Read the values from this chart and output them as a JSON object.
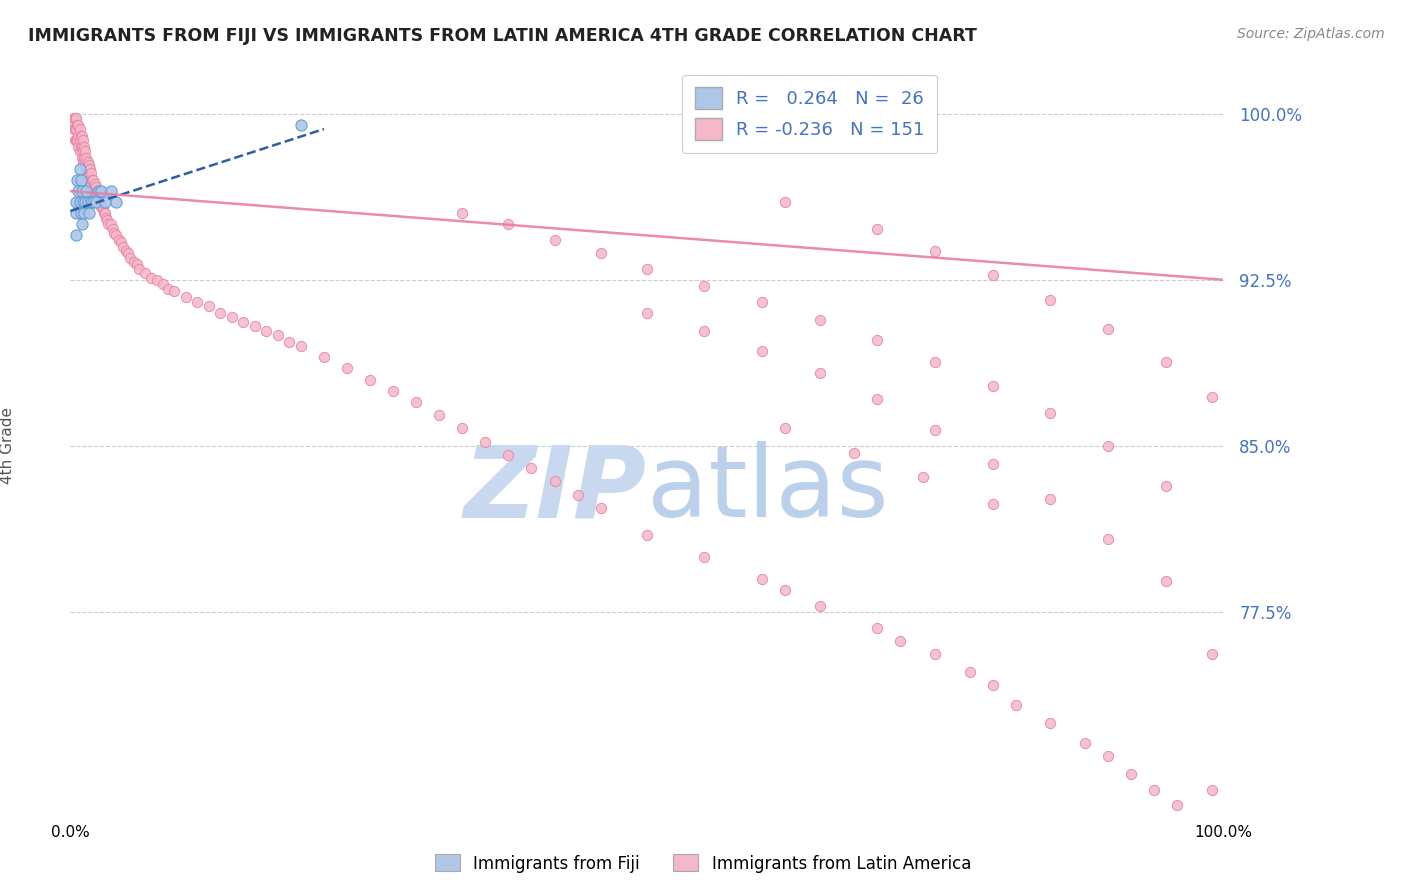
{
  "title": "IMMIGRANTS FROM FIJI VS IMMIGRANTS FROM LATIN AMERICA 4TH GRADE CORRELATION CHART",
  "source": "Source: ZipAtlas.com",
  "ylabel": "4th Grade",
  "xlim": [
    0.0,
    1.0
  ],
  "ylim": [
    0.685,
    1.015
  ],
  "yticks": [
    0.775,
    0.85,
    0.925,
    1.0
  ],
  "ytick_labels": [
    "77.5%",
    "85.0%",
    "92.5%",
    "100.0%"
  ],
  "fiji_R": 0.264,
  "fiji_N": 26,
  "latin_R": -0.236,
  "latin_N": 151,
  "fiji_color": "#aec6e8",
  "fiji_edge": "#5b9bd5",
  "latin_color": "#f4b8c8",
  "latin_edge": "#e87fa0",
  "trend_fiji_color": "#2e5fa3",
  "trend_latin_color": "#e87fa0",
  "fiji_scatter_x": [
    0.005,
    0.005,
    0.005,
    0.006,
    0.007,
    0.008,
    0.008,
    0.009,
    0.009,
    0.01,
    0.01,
    0.011,
    0.012,
    0.013,
    0.014,
    0.015,
    0.016,
    0.018,
    0.02,
    0.022,
    0.025,
    0.027,
    0.03,
    0.035,
    0.04,
    0.2
  ],
  "fiji_scatter_y": [
    0.96,
    0.955,
    0.945,
    0.97,
    0.965,
    0.975,
    0.96,
    0.97,
    0.955,
    0.965,
    0.95,
    0.96,
    0.955,
    0.96,
    0.965,
    0.96,
    0.955,
    0.96,
    0.96,
    0.96,
    0.965,
    0.965,
    0.96,
    0.965,
    0.96,
    0.995
  ],
  "latin_scatter_x": [
    0.002,
    0.003,
    0.003,
    0.004,
    0.004,
    0.004,
    0.005,
    0.005,
    0.005,
    0.006,
    0.006,
    0.007,
    0.007,
    0.007,
    0.008,
    0.008,
    0.008,
    0.009,
    0.009,
    0.01,
    0.01,
    0.01,
    0.011,
    0.011,
    0.011,
    0.012,
    0.012,
    0.013,
    0.013,
    0.014,
    0.014,
    0.015,
    0.015,
    0.015,
    0.016,
    0.016,
    0.017,
    0.017,
    0.018,
    0.018,
    0.019,
    0.02,
    0.02,
    0.021,
    0.022,
    0.022,
    0.023,
    0.024,
    0.025,
    0.026,
    0.027,
    0.028,
    0.029,
    0.03,
    0.031,
    0.032,
    0.033,
    0.035,
    0.037,
    0.038,
    0.04,
    0.042,
    0.044,
    0.046,
    0.048,
    0.05,
    0.052,
    0.055,
    0.058,
    0.06,
    0.065,
    0.07,
    0.075,
    0.08,
    0.085,
    0.09,
    0.1,
    0.11,
    0.12,
    0.13,
    0.14,
    0.15,
    0.16,
    0.17,
    0.18,
    0.19,
    0.2,
    0.22,
    0.24,
    0.26,
    0.28,
    0.3,
    0.32,
    0.34,
    0.36,
    0.38,
    0.4,
    0.42,
    0.44,
    0.46,
    0.5,
    0.55,
    0.6,
    0.62,
    0.65,
    0.7,
    0.72,
    0.75,
    0.78,
    0.8,
    0.82,
    0.85,
    0.88,
    0.9,
    0.92,
    0.94,
    0.96,
    0.98,
    0.99,
    0.34,
    0.38,
    0.42,
    0.46,
    0.5,
    0.55,
    0.6,
    0.65,
    0.7,
    0.75,
    0.8,
    0.85,
    0.9,
    0.95,
    0.5,
    0.55,
    0.6,
    0.65,
    0.7,
    0.75,
    0.8,
    0.85,
    0.9,
    0.95,
    0.62,
    0.68,
    0.74,
    0.8,
    0.62,
    0.7,
    0.75,
    0.8,
    0.85,
    0.9,
    0.95,
    0.99,
    0.99
  ],
  "latin_scatter_y": [
    0.995,
    0.998,
    0.993,
    0.998,
    0.993,
    0.988,
    0.998,
    0.993,
    0.988,
    0.995,
    0.988,
    0.995,
    0.99,
    0.985,
    0.993,
    0.988,
    0.983,
    0.99,
    0.985,
    0.99,
    0.985,
    0.98,
    0.988,
    0.983,
    0.978,
    0.985,
    0.98,
    0.983,
    0.978,
    0.98,
    0.975,
    0.978,
    0.975,
    0.97,
    0.977,
    0.972,
    0.975,
    0.97,
    0.973,
    0.968,
    0.97,
    0.97,
    0.965,
    0.968,
    0.967,
    0.962,
    0.965,
    0.963,
    0.96,
    0.96,
    0.958,
    0.957,
    0.955,
    0.955,
    0.953,
    0.952,
    0.95,
    0.95,
    0.948,
    0.946,
    0.945,
    0.943,
    0.942,
    0.94,
    0.938,
    0.937,
    0.935,
    0.933,
    0.932,
    0.93,
    0.928,
    0.926,
    0.925,
    0.923,
    0.921,
    0.92,
    0.917,
    0.915,
    0.913,
    0.91,
    0.908,
    0.906,
    0.904,
    0.902,
    0.9,
    0.897,
    0.895,
    0.89,
    0.885,
    0.88,
    0.875,
    0.87,
    0.864,
    0.858,
    0.852,
    0.846,
    0.84,
    0.834,
    0.828,
    0.822,
    0.81,
    0.8,
    0.79,
    0.785,
    0.778,
    0.768,
    0.762,
    0.756,
    0.748,
    0.742,
    0.733,
    0.725,
    0.716,
    0.71,
    0.702,
    0.695,
    0.688,
    0.68,
    0.695,
    0.955,
    0.95,
    0.943,
    0.937,
    0.93,
    0.922,
    0.915,
    0.907,
    0.898,
    0.888,
    0.877,
    0.865,
    0.85,
    0.832,
    0.91,
    0.902,
    0.893,
    0.883,
    0.871,
    0.857,
    0.842,
    0.826,
    0.808,
    0.789,
    0.858,
    0.847,
    0.836,
    0.824,
    0.96,
    0.948,
    0.938,
    0.927,
    0.916,
    0.903,
    0.888,
    0.872,
    0.756
  ]
}
